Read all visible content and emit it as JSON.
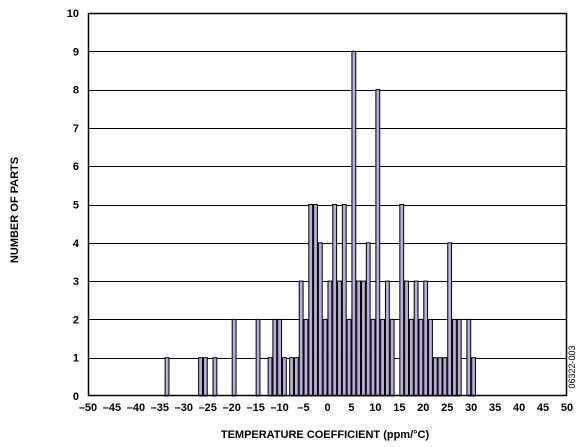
{
  "chart_data": {
    "type": "bar",
    "title": "",
    "xlabel": "TEMPERATURE COEFFICIENT (ppm/°C)",
    "ylabel": "NUMBER OF PARTS",
    "xlim": [
      -50,
      50
    ],
    "ylim": [
      0,
      10
    ],
    "x_ticks": [
      -50,
      -45,
      -40,
      -35,
      -30,
      -25,
      -20,
      -15,
      -10,
      -5,
      0,
      5,
      10,
      15,
      20,
      25,
      30,
      35,
      40,
      45,
      50
    ],
    "x_tick_labels": [
      "–50",
      "–45",
      "–40",
      "–35",
      "–30",
      "–25",
      "–20",
      "–15",
      "–10",
      "–5",
      "0",
      "5",
      "10",
      "15",
      "20",
      "25",
      "30",
      "35",
      "40",
      "45",
      "50"
    ],
    "y_ticks": [
      0,
      1,
      2,
      3,
      4,
      5,
      6,
      7,
      8,
      9,
      10
    ],
    "y_tick_labels": [
      "0",
      "1",
      "2",
      "3",
      "4",
      "5",
      "6",
      "7",
      "8",
      "9",
      "10"
    ],
    "grid": "horizontal",
    "bar_color": "#b8acd9",
    "bar_edge_color": "#000000",
    "bars": [
      {
        "x": -33.5,
        "y": 1
      },
      {
        "x": -26.5,
        "y": 1
      },
      {
        "x": -25.5,
        "y": 1
      },
      {
        "x": -23.5,
        "y": 1
      },
      {
        "x": -19.5,
        "y": 2
      },
      {
        "x": -14.5,
        "y": 2
      },
      {
        "x": -12.0,
        "y": 1
      },
      {
        "x": -11.0,
        "y": 2
      },
      {
        "x": -10.0,
        "y": 2
      },
      {
        "x": -9.0,
        "y": 1
      },
      {
        "x": -7.5,
        "y": 1
      },
      {
        "x": -6.5,
        "y": 1
      },
      {
        "x": -5.5,
        "y": 3
      },
      {
        "x": -4.5,
        "y": 2
      },
      {
        "x": -3.5,
        "y": 5
      },
      {
        "x": -2.5,
        "y": 5
      },
      {
        "x": -1.5,
        "y": 4
      },
      {
        "x": -0.5,
        "y": 2
      },
      {
        "x": 0.5,
        "y": 3
      },
      {
        "x": 1.5,
        "y": 5
      },
      {
        "x": 2.5,
        "y": 3
      },
      {
        "x": 3.5,
        "y": 5
      },
      {
        "x": 4.5,
        "y": 2
      },
      {
        "x": 5.5,
        "y": 9
      },
      {
        "x": 6.5,
        "y": 3
      },
      {
        "x": 7.5,
        "y": 3
      },
      {
        "x": 8.5,
        "y": 4
      },
      {
        "x": 9.5,
        "y": 2
      },
      {
        "x": 10.5,
        "y": 8
      },
      {
        "x": 11.5,
        "y": 2
      },
      {
        "x": 12.5,
        "y": 3
      },
      {
        "x": 13.5,
        "y": 2
      },
      {
        "x": 15.5,
        "y": 5
      },
      {
        "x": 16.5,
        "y": 3
      },
      {
        "x": 17.5,
        "y": 2
      },
      {
        "x": 18.5,
        "y": 3
      },
      {
        "x": 19.5,
        "y": 2
      },
      {
        "x": 20.5,
        "y": 3
      },
      {
        "x": 21.5,
        "y": 2
      },
      {
        "x": 22.5,
        "y": 1
      },
      {
        "x": 23.5,
        "y": 1
      },
      {
        "x": 24.5,
        "y": 1
      },
      {
        "x": 25.5,
        "y": 4
      },
      {
        "x": 26.5,
        "y": 2
      },
      {
        "x": 27.5,
        "y": 2
      },
      {
        "x": 29.5,
        "y": 2
      },
      {
        "x": 30.5,
        "y": 1
      }
    ],
    "bar_width": 0.8,
    "side_code": "06322-003"
  }
}
